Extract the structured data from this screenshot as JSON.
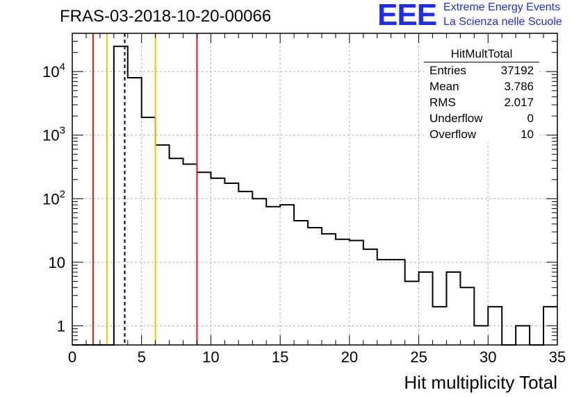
{
  "title": "FRAS-03-2018-10-20-00066",
  "logo": {
    "mark": "EEE",
    "line1": "Extreme Energy Events",
    "line2": "La Scienza nelle Scuole",
    "color": "#1e2bf0"
  },
  "stats": {
    "title": "HitMultTotal",
    "rows": [
      {
        "label": "Entries",
        "value": "37192"
      },
      {
        "label": "Mean",
        "value": "3.786"
      },
      {
        "label": "RMS",
        "value": "2.017"
      },
      {
        "label": "Underflow",
        "value": "0"
      },
      {
        "label": "Overflow",
        "value": "10"
      }
    ]
  },
  "chart_data": {
    "type": "histogram",
    "title": "FRAS-03-2018-10-20-00066",
    "xlabel": "Hit multiplicity Total",
    "ylabel": "",
    "xlim": [
      0,
      35
    ],
    "ylim": [
      0.5,
      40000
    ],
    "yscale": "log",
    "grid": true,
    "bin_edges": [
      0,
      1,
      2,
      3,
      4,
      5,
      6,
      7,
      8,
      9,
      10,
      11,
      12,
      13,
      14,
      15,
      16,
      17,
      18,
      19,
      20,
      21,
      22,
      23,
      24,
      25,
      26,
      27,
      28,
      29,
      30,
      31,
      32,
      33,
      34,
      35
    ],
    "values": [
      0,
      0,
      0,
      25000,
      8000,
      1900,
      700,
      430,
      350,
      260,
      210,
      175,
      130,
      100,
      75,
      80,
      45,
      35,
      28,
      23,
      22,
      16,
      11,
      11,
      5,
      7,
      2,
      7,
      4,
      1,
      2,
      0,
      1,
      0,
      2
    ],
    "x_ticks": [
      0,
      5,
      10,
      15,
      20,
      25,
      30,
      35
    ],
    "x_tick_labels": [
      "0",
      "5",
      "10",
      "15",
      "20",
      "25",
      "30",
      "35"
    ],
    "y_ticks": [
      1,
      10,
      100,
      1000,
      10000
    ],
    "y_tick_labels": [
      "1",
      "10",
      "10^2",
      "10^3",
      "10^4"
    ],
    "vertical_lines": [
      {
        "x": 1.5,
        "color": "#e8141e",
        "style": "solid"
      },
      {
        "x": 2.5,
        "color": "#f5c400",
        "style": "solid"
      },
      {
        "x": 3.786,
        "color": "#000000",
        "style": "dashed"
      },
      {
        "x": 6.0,
        "color": "#f5c400",
        "style": "solid"
      },
      {
        "x": 9.0,
        "color": "#e8141e",
        "style": "solid"
      }
    ]
  }
}
